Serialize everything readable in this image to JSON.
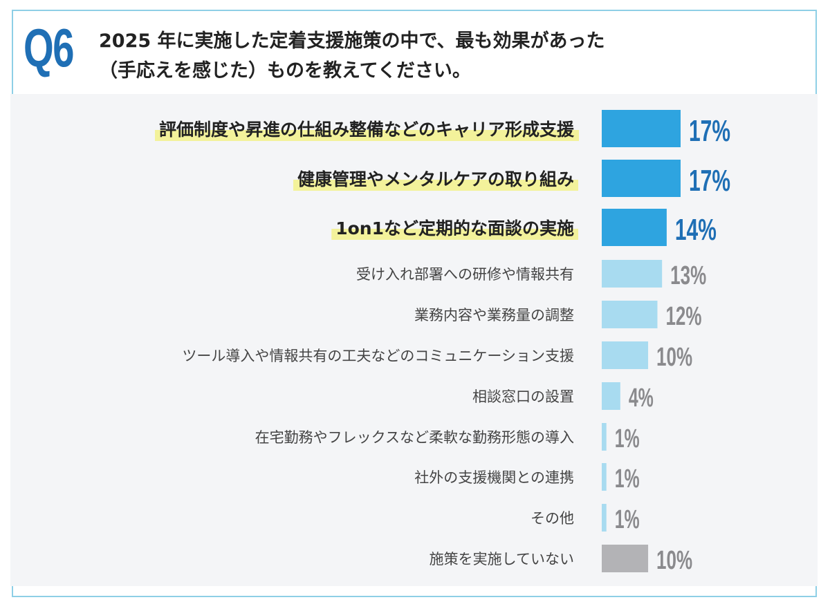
{
  "question": {
    "badge": "Q6",
    "title_line1": "2025 年に実施した定着支援施策の中で、最も効果があった",
    "title_line2": "（手応えを感じた）ものを教えてください。"
  },
  "colors": {
    "accent": "#1f6fb5",
    "bar_highlight": "#2ea4e0",
    "bar_normal": "#a8dbf0",
    "bar_none": "#b3b3b6",
    "value_highlight": "#1f6fb5",
    "value_normal": "#8a8a8d",
    "highlight_marker": "#f3f29b"
  },
  "chart_data": {
    "type": "bar",
    "orientation": "horizontal",
    "title": "2025 年に実施した定着支援施策の中で、最も効果があった（手応えを感じた）ものを教えてください。",
    "unit": "%",
    "categories": [
      "評価制度や昇進の仕組み整備などのキャリア形成支援",
      "健康管理やメンタルケアの取り組み",
      "1on1など定期的な面談の実施",
      "受け入れ部署への研修や情報共有",
      "業務内容や業務量の調整",
      "ツール導入や情報共有の工夫などのコミュニケーション支援",
      "相談窓口の設置",
      "在宅勤務やフレックスなど柔軟な勤務形態の導入",
      "社外の支援機関との連携",
      "その他",
      "施策を実施していない"
    ],
    "values": [
      17,
      17,
      14,
      13,
      12,
      10,
      4,
      1,
      1,
      1,
      10
    ],
    "value_labels": [
      "17%",
      "17%",
      "14%",
      "13%",
      "12%",
      "10%",
      "4%",
      "1%",
      "1%",
      "1%",
      "10%"
    ],
    "highlighted": [
      true,
      true,
      true,
      false,
      false,
      false,
      false,
      false,
      false,
      false,
      false
    ],
    "kind": [
      "top",
      "top",
      "top",
      "normal",
      "normal",
      "normal",
      "normal",
      "normal",
      "normal",
      "normal",
      "none"
    ],
    "xlim": [
      0,
      17
    ]
  }
}
